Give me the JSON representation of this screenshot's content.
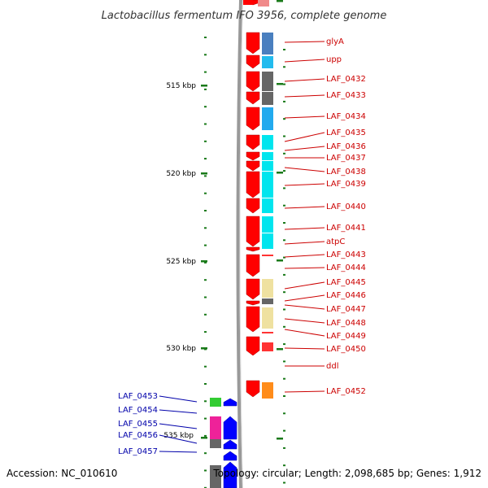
{
  "title": "Lactobacillus fermentum IFO 3956, complete genome",
  "scale_labels": [
    {
      "label": "515 kbp"
    },
    {
      "label": "520 kbp"
    },
    {
      "label": "525 kbp"
    },
    {
      "label": "530 kbp"
    },
    {
      "label": "535 kbp"
    }
  ],
  "forward_genes": [
    {
      "label": "glyA",
      "color": "#4a7fbf"
    },
    {
      "label": "upp",
      "color": "#22bbee"
    },
    {
      "label": "LAF_0432",
      "color": "#666666"
    },
    {
      "label": "LAF_0433",
      "color": "#666666"
    },
    {
      "label": "LAF_0434",
      "color": "#22aaee"
    },
    {
      "label": "LAF_0435",
      "color": "#00e5ee"
    },
    {
      "label": "LAF_0436",
      "color": "#00e5ee"
    },
    {
      "label": "LAF_0437",
      "color": "#00e5ee"
    },
    {
      "label": "LAF_0438",
      "color": "#00e5ee"
    },
    {
      "label": "LAF_0439",
      "color": "#00e5ee"
    },
    {
      "label": "LAF_0440",
      "color": "#00e5ee"
    },
    {
      "label": "LAF_0441",
      "color": "#00e5ee"
    },
    {
      "label": "atpC",
      "color": "#00e5ee"
    },
    {
      "label": "LAF_0443",
      "color": "#ff3333"
    },
    {
      "label": "LAF_0444",
      "color": "#6b7f2a"
    },
    {
      "label": "LAF_0445",
      "color": "#efe1a0"
    },
    {
      "label": "LAF_0446",
      "color": "#666666"
    },
    {
      "label": "LAF_0447",
      "color": "#efe1a0"
    },
    {
      "label": "LAF_0448",
      "color": "#efe1a0"
    },
    {
      "label": "LAF_0449",
      "color": "#ff3333"
    },
    {
      "label": "LAF_0450",
      "color": "#ff3333"
    },
    {
      "label": "ddl",
      "color": "#6b7f2a"
    },
    {
      "label": "LAF_0452",
      "color": "#ff8c1a"
    }
  ],
  "reverse_genes": [
    {
      "label": "LAF_0453",
      "color": "#33cc33"
    },
    {
      "label": "LAF_0454",
      "color": "#666666"
    },
    {
      "label": "LAF_0455",
      "color": "#ee2299"
    },
    {
      "label": "LAF_0456",
      "color": "#666666"
    },
    {
      "label": "LAF_0457",
      "color": "#0000ff"
    }
  ],
  "colors": {
    "forward_strand": "#ff0000",
    "reverse_strand": "#0000ff",
    "backbone": "#888888",
    "tick": "#1a7a1a",
    "forward_label": "#cc0000",
    "reverse_label": "#0000aa"
  },
  "footer": {
    "accession": "Accession: NC_010610",
    "summary": "Topology: circular; Length: 2,098,685 bp; Genes: 1,912"
  }
}
